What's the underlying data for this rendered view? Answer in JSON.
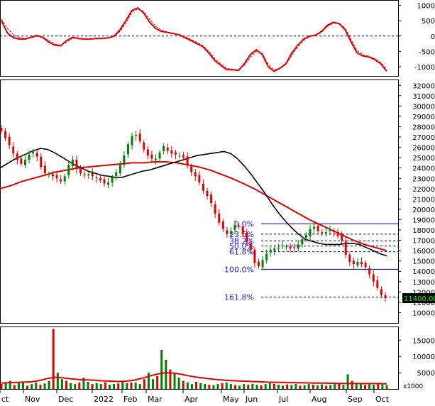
{
  "chart_data": [
    {
      "panel": "macd",
      "type": "line",
      "y_ticks": [
        "1000",
        "500",
        "0",
        "-500",
        "-1000"
      ],
      "y_tick_values": [
        1000,
        500,
        0,
        -500,
        -1000
      ],
      "ylim": [
        -1300,
        1150
      ],
      "zero_line": 0,
      "series": [
        {
          "style": "solid",
          "color": "#e00000",
          "values": [
            500,
            100,
            -50,
            -100,
            -100,
            -40,
            20,
            -50,
            -200,
            -300,
            -320,
            -150,
            -40,
            -80,
            -100,
            -100,
            -80,
            -80,
            -60,
            0,
            200,
            500,
            830,
            920,
            750,
            450,
            250,
            150,
            120,
            80,
            40,
            -60,
            -150,
            -250,
            -350,
            -550,
            -800,
            -950,
            -1100,
            -1100,
            -1120,
            -900,
            -600,
            -450,
            -600,
            -1000,
            -1150,
            -1050,
            -900,
            -550,
            -300,
            -100,
            0,
            30,
            150,
            350,
            450,
            400,
            200,
            -200,
            -550,
            -650,
            -680,
            -770,
            -900,
            -1150
          ]
        },
        {
          "style": "dashed",
          "color": "#e00000",
          "values": [
            550,
            250,
            50,
            -40,
            -80,
            -60,
            -10,
            -30,
            -150,
            -260,
            -300,
            -200,
            -80,
            -70,
            -90,
            -100,
            -90,
            -80,
            -70,
            -20,
            150,
            420,
            760,
            880,
            800,
            550,
            320,
            190,
            130,
            90,
            50,
            -20,
            -110,
            -210,
            -310,
            -500,
            -740,
            -900,
            -1050,
            -1080,
            -1100,
            -950,
            -690,
            -500,
            -560,
            -920,
            -1100,
            -1060,
            -930,
            -620,
            -350,
            -140,
            -20,
            20,
            120,
            310,
            420,
            410,
            250,
            -120,
            -470,
            -610,
            -660,
            -740,
            -860,
            -1080
          ]
        }
      ]
    },
    {
      "panel": "price",
      "type": "candlestick",
      "y_ticks": [
        "32000",
        "31000",
        "30000",
        "29000",
        "28000",
        "27000",
        "26000",
        "25000",
        "24000",
        "23000",
        "22000",
        "21000",
        "20000",
        "19000",
        "18000",
        "17000",
        "16000",
        "15000",
        "14000",
        "13000",
        "12000",
        "11000",
        "10000"
      ],
      "y_tick_values": [
        32000,
        31000,
        30000,
        29000,
        28000,
        27000,
        26000,
        25000,
        24000,
        23000,
        22000,
        21000,
        20000,
        19000,
        18000,
        17000,
        16000,
        15000,
        14000,
        13000,
        12000,
        11000,
        10000
      ],
      "ylim": [
        9000,
        32500
      ],
      "close": [
        27600,
        26900,
        26200,
        25400,
        24800,
        24400,
        24800,
        25300,
        25600,
        25100,
        24100,
        23500,
        23400,
        23200,
        23000,
        22700,
        23200,
        24300,
        24800,
        23900,
        23500,
        23300,
        23400,
        23200,
        23000,
        22800,
        22500,
        22600,
        23100,
        23600,
        24300,
        25200,
        26300,
        27100,
        27200,
        26600,
        25800,
        25200,
        24900,
        24900,
        25500,
        26100,
        25700,
        25400,
        25300,
        25200,
        25000,
        24300,
        23600,
        23200,
        22600,
        21800,
        21300,
        20600,
        19600,
        18700,
        18100,
        17600,
        17900,
        18500,
        18300,
        17600,
        16800,
        16100,
        14800,
        14500,
        15100,
        15700,
        16100,
        16200,
        16300,
        16500,
        16400,
        16200,
        16300,
        16600,
        17100,
        17500,
        18100,
        18300,
        17900,
        17700,
        17800,
        18000,
        17800,
        17400,
        17000,
        15600,
        14900,
        14700,
        14900,
        14700,
        14400,
        13700,
        13000,
        12400,
        11700,
        11400
      ],
      "ma_short": {
        "color": "#000000",
        "values": [
          24000,
          24400,
          24800,
          25100,
          25400,
          25700,
          25900,
          25800,
          25500,
          25100,
          24700,
          24300,
          24000,
          23700,
          23500,
          23300,
          23200,
          23100,
          23100,
          23300,
          23500,
          23700,
          23800,
          24000,
          24200,
          24400,
          24600,
          24800,
          25000,
          25200,
          25300,
          25400,
          25500,
          25600,
          25400,
          24900,
          24200,
          23400,
          22500,
          21600,
          20600,
          19700,
          18900,
          18200,
          17600,
          17100,
          16900,
          16700,
          16600,
          16600,
          16600,
          16700,
          16700,
          16600,
          16300,
          16000,
          15700,
          15500
        ]
      },
      "ma_long": {
        "color": "#e00000",
        "values": [
          22000,
          22300,
          22700,
          23000,
          23300,
          23600,
          23800,
          24000,
          24100,
          24200,
          24300,
          24400,
          24500,
          24500,
          24600,
          24600,
          24500,
          24300,
          24100,
          23800,
          23400,
          23000,
          22500,
          22000,
          21400,
          20800,
          20200,
          19600,
          19000,
          18500,
          18000,
          17500,
          17000,
          16600,
          16300,
          16000
        ]
      },
      "fibonacci": [
        {
          "label": "0.0%",
          "value": 18600,
          "style": "solid"
        },
        {
          "label": "23.6%",
          "value": 17600,
          "style": "dashed"
        },
        {
          "label": "38.2%",
          "value": 16950,
          "style": "dashed"
        },
        {
          "label": "50.0%",
          "value": 16450,
          "style": "dashed"
        },
        {
          "label": "61.8%",
          "value": 15900,
          "style": "dashed"
        },
        {
          "label": "100.0%",
          "value": 14200,
          "style": "solid"
        },
        {
          "label": "161.8%",
          "value": 11500,
          "style": "dashed"
        }
      ],
      "last_price_label": "11400.00",
      "last_price": 11400
    },
    {
      "panel": "volume",
      "type": "bar",
      "y_ticks": [
        "15000",
        "10000",
        "5000"
      ],
      "y_tick_values": [
        15000,
        10000,
        5000
      ],
      "ylim": [
        0,
        19000
      ],
      "unit_label": "x1000",
      "values": [
        1500,
        2000,
        2500,
        1200,
        1800,
        2200,
        1000,
        1500,
        2000,
        1300,
        1700,
        2500,
        18500,
        5000,
        3000,
        2500,
        1800,
        1500,
        2000,
        3500,
        2200,
        1500,
        1800,
        1500,
        2000,
        1300,
        1500,
        1700,
        2500,
        1800,
        2000,
        2000,
        1500,
        3000,
        5000,
        3000,
        4000,
        12000,
        9000,
        6000,
        5000,
        3500,
        2500,
        2000,
        1500,
        2200,
        1800,
        1500,
        1300,
        1200,
        1500,
        1800,
        2000,
        1500,
        1200,
        1000,
        1500,
        1300,
        1600,
        1300,
        1100,
        1500,
        1800,
        1600,
        1300,
        1000,
        1400,
        1200,
        1500,
        1000,
        1200,
        1500,
        1300,
        1100,
        1400,
        1000,
        1200,
        1500,
        1800,
        1300,
        4500,
        2500,
        1800,
        1500,
        1200,
        1500,
        1300,
        1800,
        1600,
        1200
      ],
      "ma": {
        "color": "#e00000",
        "values": [
          1800,
          1900,
          2000,
          2100,
          2200,
          2600,
          3200,
          3600,
          3400,
          3100,
          2900,
          2800,
          2700,
          2500,
          2400,
          2300,
          2400,
          2700,
          3300,
          4000,
          4600,
          5000,
          4900,
          4500,
          4000,
          3600,
          3300,
          3000,
          2800,
          2600,
          2500,
          2400,
          2300,
          2200,
          2100,
          2050,
          2000,
          1950,
          1900,
          1850,
          1800,
          1800,
          1750,
          1700,
          1700,
          1700,
          1650,
          1650,
          1650,
          1600
        ]
      }
    }
  ],
  "x_axis": {
    "labels": [
      "ct",
      "Nov",
      "Dec",
      "2022",
      "Feb",
      "Mar",
      "Apr",
      "May",
      "Jun",
      "Jul",
      "Aug",
      "Sep",
      "Oct"
    ]
  }
}
